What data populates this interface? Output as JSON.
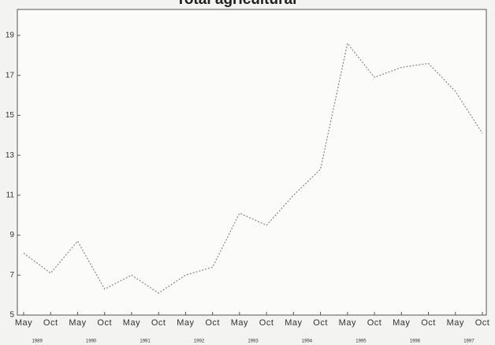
{
  "chart_data": {
    "type": "line",
    "title": "Total agricultural",
    "categories": [
      "May",
      "Oct",
      "May",
      "Oct",
      "May",
      "Oct",
      "May",
      "Oct",
      "May",
      "Oct",
      "May",
      "Oct",
      "May",
      "Oct",
      "May",
      "Oct",
      "May",
      "Oct"
    ],
    "years": [
      "1989",
      "1990",
      "1991",
      "1992",
      "1993",
      "1994",
      "1995",
      "1996",
      "1997"
    ],
    "values": [
      8.1,
      7.1,
      8.7,
      6.3,
      7.0,
      6.1,
      7.0,
      7.4,
      10.1,
      9.5,
      11.0,
      12.3,
      18.6,
      16.9,
      17.4,
      17.6,
      16.2,
      14.1
    ],
    "color": "#888888",
    "ylim": [
      5,
      20.3
    ],
    "yticks": [
      5,
      7,
      9,
      11,
      13,
      15,
      17,
      19
    ]
  }
}
